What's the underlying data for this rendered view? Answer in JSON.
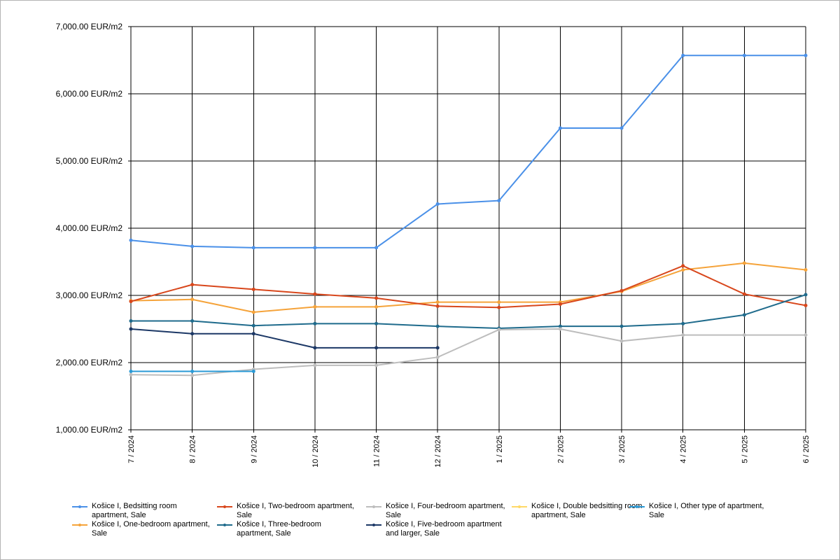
{
  "chart_data": {
    "type": "line",
    "title": "",
    "xlabel": "",
    "ylabel": "",
    "categories": [
      "7 / 2024",
      "8 / 2024",
      "9 / 2024",
      "10 / 2024",
      "11 / 2024",
      "12 / 2024",
      "1 / 2025",
      "2 / 2025",
      "3 / 2025",
      "4 / 2025",
      "5 / 2025",
      "6 / 2025"
    ],
    "ylim": [
      1000,
      7000
    ],
    "y_ticks": [
      1000,
      2000,
      3000,
      4000,
      5000,
      6000,
      7000
    ],
    "y_tick_labels": [
      "1,000.00 EUR/m2",
      "2,000.00 EUR/m2",
      "3,000.00 EUR/m2",
      "4,000.00 EUR/m2",
      "5,000.00 EUR/m2",
      "6,000.00 EUR/m2",
      "7,000.00 EUR/m2"
    ],
    "grid": true,
    "legend_position": "bottom",
    "series": [
      {
        "name": "Košice I, Bedsitting room apartment, Sale",
        "color": "#4a90e8",
        "values": [
          3820,
          3730,
          3710,
          3710,
          3710,
          4360,
          4410,
          5490,
          5490,
          6570,
          6570,
          6570
        ]
      },
      {
        "name": "Košice I, One-bedroom apartment, Sale",
        "color": "#f5a33a",
        "values": [
          2920,
          2940,
          2750,
          2830,
          2830,
          2900,
          2900,
          2900,
          3060,
          3380,
          3480,
          3380
        ]
      },
      {
        "name": "Košice I, Two-bedroom apartment, Sale",
        "color": "#d8471c",
        "values": [
          2910,
          3160,
          3090,
          3020,
          2960,
          2840,
          2820,
          2870,
          3070,
          3440,
          3020,
          2850
        ]
      },
      {
        "name": "Košice I, Three-bedroom apartment, Sale",
        "color": "#1f6b8c",
        "values": [
          2620,
          2620,
          2550,
          2580,
          2580,
          2540,
          2510,
          2540,
          2540,
          2580,
          2710,
          3010
        ]
      },
      {
        "name": "Košice I, Four-bedroom apartment, Sale",
        "color": "#bdbdbd",
        "values": [
          1820,
          1810,
          1900,
          1960,
          1960,
          2080,
          2490,
          2500,
          2320,
          2410,
          2410,
          2410
        ]
      },
      {
        "name": "Košice I, Five-bedroom apartment and larger, Sale",
        "color": "#1c3866",
        "values": [
          2500,
          2430,
          2430,
          2220,
          2220,
          2220,
          null,
          null,
          null,
          null,
          null,
          null
        ]
      },
      {
        "name": "Košice I, Double bedsitting room apartment, Sale",
        "color": "#ffd966",
        "values": [
          null,
          null,
          null,
          null,
          null,
          null,
          null,
          null,
          null,
          null,
          null,
          null
        ]
      },
      {
        "name": "Košice I, Other type of apartment, Sale",
        "color": "#2a9ad6",
        "values": [
          1870,
          1870,
          1870,
          null,
          null,
          null,
          null,
          null,
          null,
          null,
          null,
          null
        ]
      }
    ]
  },
  "legend": {
    "items": [
      {
        "label": "Košice I, Bedsitting room apartment, Sale",
        "color": "#4a90e8"
      },
      {
        "label": "Košice I, Two-bedroom apartment, Sale",
        "color": "#d8471c"
      },
      {
        "label": "Košice I, Four-bedroom apartment, Sale",
        "color": "#bdbdbd"
      },
      {
        "label": "Košice I, Double bedsitting room apartment, Sale",
        "color": "#ffd966"
      },
      {
        "label": "Košice I, Other type of apartment, Sale",
        "color": "#2a9ad6"
      },
      {
        "label": "Košice I, One-bedroom apartment, Sale",
        "color": "#f5a33a"
      },
      {
        "label": "Košice I, Three-bedroom apartment, Sale",
        "color": "#1f6b8c"
      },
      {
        "label": "Košice I, Five-bedroom apartment and larger, Sale",
        "color": "#1c3866"
      }
    ]
  }
}
